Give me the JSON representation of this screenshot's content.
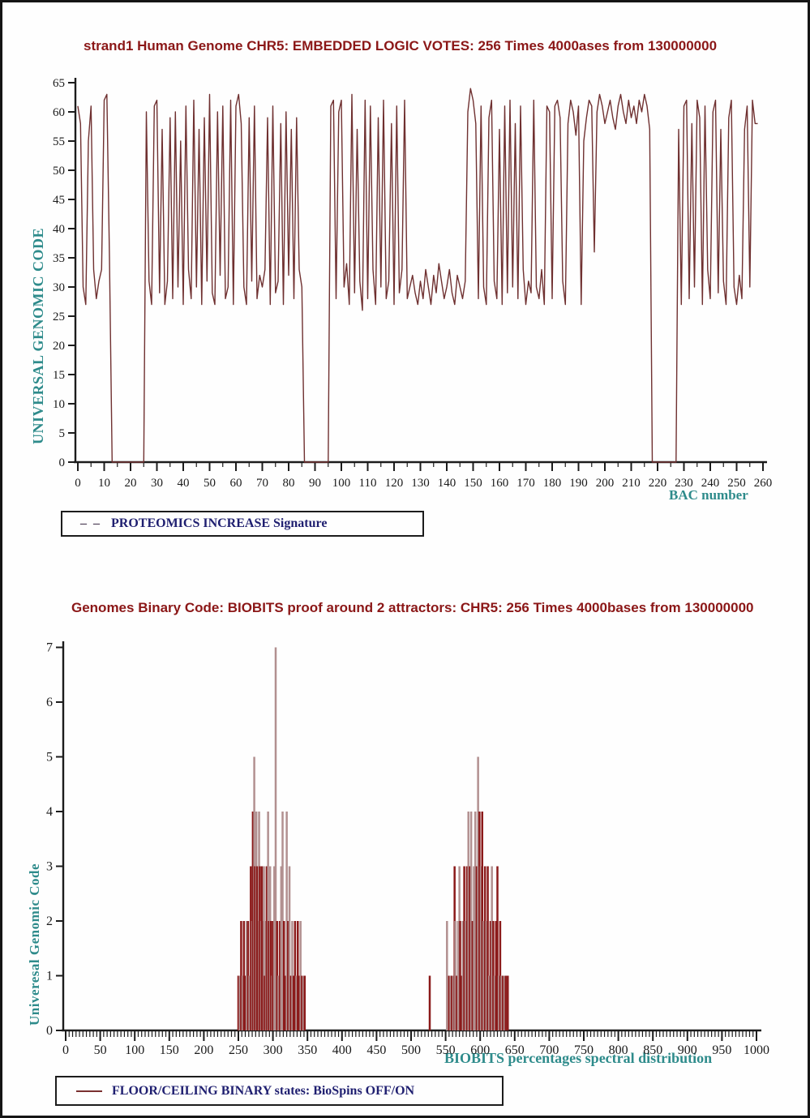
{
  "colors": {
    "title_red": "#8b1717",
    "teal": "#2e8b8b",
    "legend_navy": "#1f1f70",
    "axis": "#1c1c1c",
    "line_maroon": "#6f3030",
    "stem_dark": "#8b1a1a",
    "stem_light": "#b29090",
    "background": "#fefefe"
  },
  "legend1": {
    "sample": "– –",
    "label": "PROTEOMICS INCREASE Signature"
  },
  "legend2": {
    "label": "FLOOR/CEILING BINARY states: BioSpins OFF/ON"
  },
  "chart_data": [
    {
      "type": "line",
      "title": "strand1 Human Genome CHR5: EMBEDDED LOGIC VOTES: 256 Times 4000ases from 130000000",
      "xlabel": "BAC number",
      "ylabel": "UNIVERSAL GENOMIC CODE",
      "xlim": [
        0,
        260
      ],
      "ylim": [
        0,
        65
      ],
      "xtick_step": 10,
      "x_minor_step": 5,
      "ytick_step": 5,
      "grid": false,
      "legend_position": "below-left",
      "line_color": "#6f3030",
      "x_start": 0,
      "x_step": 1,
      "values": [
        61,
        58,
        30,
        27,
        55,
        61,
        33,
        28,
        31,
        33,
        62,
        63,
        35,
        0,
        0,
        0,
        0,
        0,
        0,
        0,
        0,
        0,
        0,
        0,
        0,
        0,
        60,
        31,
        27,
        61,
        62,
        29,
        57,
        27,
        31,
        59,
        28,
        60,
        30,
        55,
        27,
        61,
        33,
        28,
        62,
        30,
        57,
        27,
        59,
        31,
        63,
        29,
        27,
        60,
        32,
        61,
        28,
        30,
        62,
        27,
        61,
        63,
        58,
        30,
        27,
        59,
        31,
        61,
        28,
        32,
        30,
        33,
        59,
        27,
        61,
        29,
        31,
        58,
        27,
        60,
        32,
        57,
        28,
        59,
        33,
        30,
        0,
        0,
        0,
        0,
        0,
        0,
        0,
        0,
        0,
        0,
        61,
        62,
        28,
        60,
        62,
        30,
        34,
        27,
        63,
        29,
        57,
        31,
        26,
        62,
        28,
        61,
        33,
        27,
        59,
        30,
        62,
        28,
        31,
        58,
        27,
        61,
        29,
        33,
        62,
        28,
        30,
        32,
        29,
        27,
        31,
        28,
        33,
        30,
        27,
        32,
        29,
        34,
        31,
        28,
        30,
        33,
        29,
        27,
        32,
        30,
        28,
        31,
        60,
        64,
        62,
        58,
        28,
        61,
        30,
        27,
        59,
        62,
        31,
        28,
        57,
        27,
        61,
        29,
        62,
        30,
        58,
        28,
        61,
        33,
        27,
        31,
        29,
        62,
        30,
        28,
        33,
        27,
        61,
        60,
        28,
        61,
        62,
        59,
        31,
        27,
        58,
        62,
        60,
        56,
        61,
        27,
        55,
        59,
        62,
        61,
        36,
        60,
        63,
        61,
        58,
        60,
        62,
        59,
        57,
        61,
        63,
        60,
        58,
        62,
        59,
        61,
        58,
        62,
        60,
        63,
        61,
        57,
        0,
        0,
        0,
        0,
        0,
        0,
        0,
        0,
        0,
        0,
        57,
        27,
        61,
        62,
        28,
        58,
        30,
        62,
        59,
        27,
        61,
        33,
        28,
        60,
        62,
        29,
        57,
        31,
        27,
        59,
        62,
        30,
        27,
        32,
        28,
        57,
        61,
        30,
        62,
        58,
        58
      ]
    },
    {
      "type": "stem",
      "title": "Genomes Binary Code: BIOBITS proof around 2 attractors:   CHR5: 256 Times 4000bases from 130000000",
      "xlabel": "BIOBITS percentages spectral distribution",
      "ylabel": "Univeresal Genomic Code",
      "xlim": [
        0,
        1000
      ],
      "ylim": [
        0,
        7
      ],
      "xtick_step": 50,
      "x_minor_step": 5,
      "ytick_step": 1,
      "grid": false,
      "legend_position": "below-left",
      "stem_colors": {
        "d": "#8b1a1a",
        "l": "#b29090"
      },
      "stems": [
        [
          250,
          1,
          "d"
        ],
        [
          252,
          1,
          "l"
        ],
        [
          254,
          2,
          "d"
        ],
        [
          256,
          1,
          "l"
        ],
        [
          258,
          2,
          "d"
        ],
        [
          260,
          1,
          "d"
        ],
        [
          262,
          2,
          "l"
        ],
        [
          264,
          2,
          "d"
        ],
        [
          266,
          1,
          "l"
        ],
        [
          268,
          3,
          "d"
        ],
        [
          270,
          2,
          "l"
        ],
        [
          271,
          4,
          "d"
        ],
        [
          273,
          5,
          "l"
        ],
        [
          274,
          3,
          "d"
        ],
        [
          276,
          4,
          "l"
        ],
        [
          277,
          3,
          "d"
        ],
        [
          279,
          2,
          "d"
        ],
        [
          280,
          4,
          "l"
        ],
        [
          281,
          3,
          "d"
        ],
        [
          283,
          2,
          "l"
        ],
        [
          284,
          3,
          "d"
        ],
        [
          286,
          2,
          "d"
        ],
        [
          287,
          3,
          "l"
        ],
        [
          288,
          1,
          "d"
        ],
        [
          290,
          2,
          "l"
        ],
        [
          291,
          3,
          "d"
        ],
        [
          293,
          4,
          "l"
        ],
        [
          294,
          2,
          "d"
        ],
        [
          296,
          3,
          "l"
        ],
        [
          297,
          2,
          "d"
        ],
        [
          299,
          1,
          "l"
        ],
        [
          300,
          2,
          "d"
        ],
        [
          302,
          3,
          "l"
        ],
        [
          304,
          7,
          "l"
        ],
        [
          306,
          2,
          "d"
        ],
        [
          308,
          1,
          "l"
        ],
        [
          310,
          2,
          "d"
        ],
        [
          312,
          3,
          "l"
        ],
        [
          314,
          4,
          "l"
        ],
        [
          316,
          2,
          "d"
        ],
        [
          318,
          1,
          "d"
        ],
        [
          320,
          4,
          "l"
        ],
        [
          322,
          2,
          "d"
        ],
        [
          324,
          3,
          "l"
        ],
        [
          326,
          1,
          "d"
        ],
        [
          328,
          2,
          "l"
        ],
        [
          330,
          1,
          "d"
        ],
        [
          332,
          2,
          "d"
        ],
        [
          334,
          1,
          "l"
        ],
        [
          336,
          2,
          "d"
        ],
        [
          338,
          1,
          "d"
        ],
        [
          340,
          2,
          "l"
        ],
        [
          342,
          1,
          "d"
        ],
        [
          344,
          1,
          "l"
        ],
        [
          346,
          1,
          "d"
        ],
        [
          527,
          1,
          "d"
        ],
        [
          552,
          2,
          "l"
        ],
        [
          555,
          1,
          "d"
        ],
        [
          557,
          1,
          "l"
        ],
        [
          559,
          1,
          "d"
        ],
        [
          561,
          1,
          "l"
        ],
        [
          563,
          3,
          "d"
        ],
        [
          564,
          2,
          "l"
        ],
        [
          566,
          1,
          "d"
        ],
        [
          568,
          2,
          "l"
        ],
        [
          570,
          3,
          "l"
        ],
        [
          571,
          2,
          "d"
        ],
        [
          573,
          1,
          "d"
        ],
        [
          575,
          2,
          "l"
        ],
        [
          577,
          3,
          "d"
        ],
        [
          579,
          2,
          "l"
        ],
        [
          581,
          3,
          "d"
        ],
        [
          583,
          4,
          "l"
        ],
        [
          585,
          3,
          "d"
        ],
        [
          587,
          4,
          "l"
        ],
        [
          589,
          2,
          "d"
        ],
        [
          591,
          3,
          "l"
        ],
        [
          593,
          4,
          "l"
        ],
        [
          595,
          3,
          "d"
        ],
        [
          597,
          5,
          "l"
        ],
        [
          599,
          4,
          "d"
        ],
        [
          601,
          3,
          "l"
        ],
        [
          603,
          4,
          "d"
        ],
        [
          605,
          2,
          "l"
        ],
        [
          607,
          3,
          "d"
        ],
        [
          609,
          2,
          "l"
        ],
        [
          611,
          3,
          "d"
        ],
        [
          613,
          1,
          "l"
        ],
        [
          615,
          2,
          "d"
        ],
        [
          617,
          3,
          "l"
        ],
        [
          619,
          2,
          "d"
        ],
        [
          621,
          1,
          "l"
        ],
        [
          623,
          2,
          "d"
        ],
        [
          625,
          3,
          "d"
        ],
        [
          627,
          1,
          "l"
        ],
        [
          629,
          2,
          "d"
        ],
        [
          631,
          1,
          "l"
        ],
        [
          633,
          1,
          "d"
        ],
        [
          635,
          1,
          "l"
        ],
        [
          637,
          1,
          "d"
        ],
        [
          640,
          1,
          "d"
        ]
      ]
    }
  ]
}
